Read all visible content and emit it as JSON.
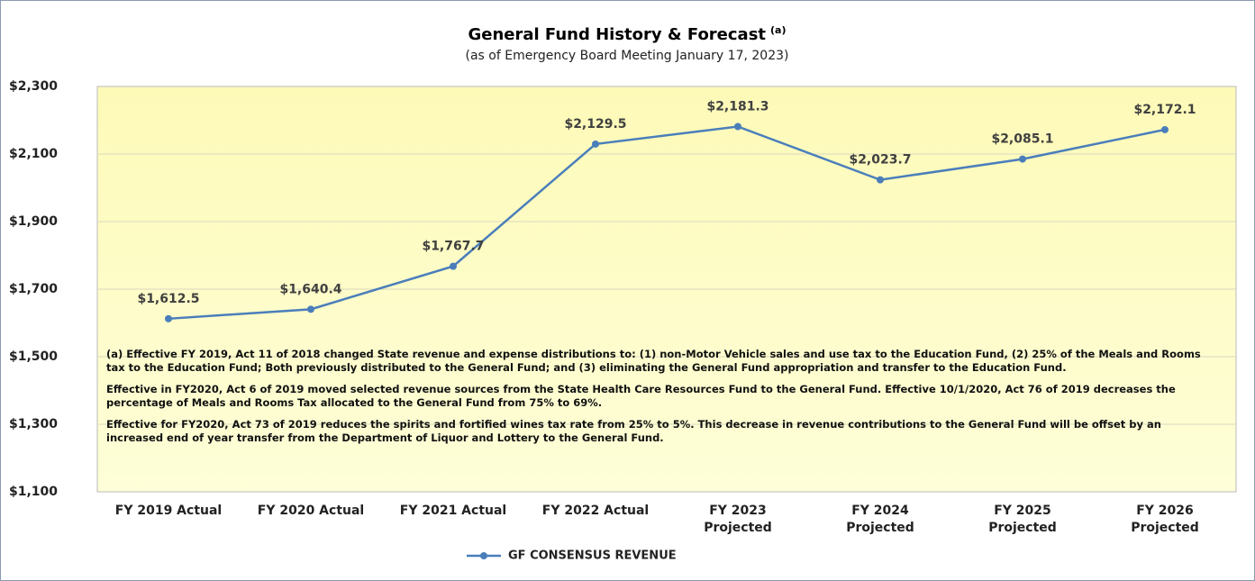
{
  "chart_data": {
    "type": "line",
    "title": "General Fund History & Forecast",
    "title_note": "(a)",
    "subtitle": "(as of Emergency Board Meeting January 17, 2023)",
    "categories": [
      "FY 2019 Actual",
      "FY 2020 Actual",
      "FY 2021 Actual",
      "FY 2022 Actual",
      "FY 2023\nProjected",
      "FY 2024\nProjected",
      "FY 2025\nProjected",
      "FY 2026\nProjected"
    ],
    "series": [
      {
        "name": "GF CONSENSUS REVENUE",
        "color": "#4a7ebb",
        "values": [
          1612.5,
          1640.4,
          1767.7,
          2129.5,
          2181.3,
          2023.7,
          2085.1,
          2172.1
        ],
        "value_labels": [
          "$1,612.5",
          "$1,640.4",
          "$1,767.7",
          "$2,129.5",
          "$2,181.3",
          "$2,023.7",
          "$2,085.1",
          "$2,172.1"
        ]
      }
    ],
    "ylim": [
      1100,
      2300
    ],
    "yticks": [
      {
        "value": 1100,
        "label": "$1,100"
      },
      {
        "value": 1300,
        "label": "$1,300"
      },
      {
        "value": 1500,
        "label": "$1,500"
      },
      {
        "value": 1700,
        "label": "$1,700"
      },
      {
        "value": 1900,
        "label": "$1,900"
      },
      {
        "value": 2100,
        "label": "$2,100"
      },
      {
        "value": 2300,
        "label": "$2,300"
      }
    ],
    "grid": true,
    "legend": "bottom",
    "annotations": [
      "(a) Effective FY 2019, Act 11 of 2018 changed State revenue and expense distributions to: (1) non-Motor Vehicle sales and use tax to the Education Fund, (2) 25% of the Meals and Rooms tax to the Education Fund; Both previously distributed to the General Fund; and (3) eliminating the General Fund appropriation and transfer to the Education Fund.",
      "Effective in FY2020, Act 6  of 2019 moved selected revenue sources from the State Health Care Resources Fund to the General Fund. Effective 10/1/2020, Act 76 of 2019 decreases the percentage of Meals and Rooms Tax allocated to the General Fund from 75% to 69%.",
      "Effective for FY2020, Act 73 of 2019 reduces the spirits and fortified wines tax rate from 25% to 5%.  This decrease in revenue contributions to the General Fund will be offset by an increased end of year transfer from the Department of Liquor and Lottery to the General Fund."
    ]
  }
}
